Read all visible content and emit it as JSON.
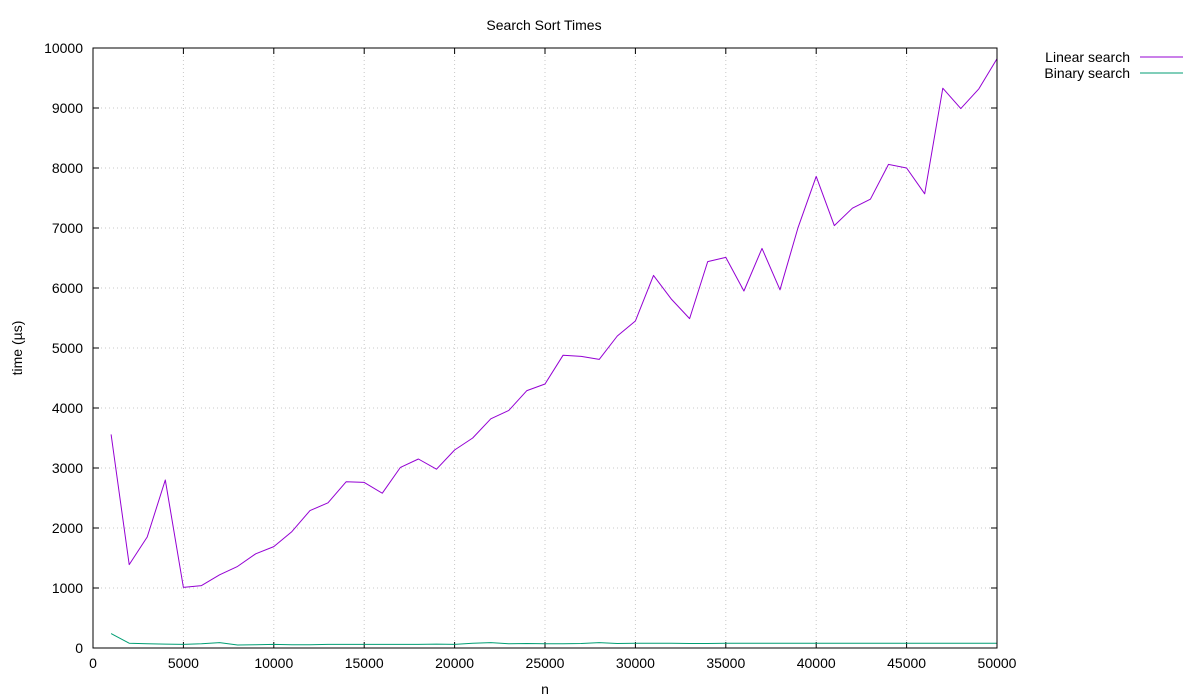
{
  "chart_data": {
    "type": "line",
    "title": "Search  Sort Times",
    "xlabel": "n",
    "ylabel": "time (µs)",
    "xlim": [
      0,
      50000
    ],
    "ylim": [
      0,
      10000
    ],
    "xticks": [
      0,
      5000,
      10000,
      15000,
      20000,
      25000,
      30000,
      35000,
      40000,
      45000,
      50000
    ],
    "yticks": [
      0,
      1000,
      2000,
      3000,
      4000,
      5000,
      6000,
      7000,
      8000,
      9000,
      10000
    ],
    "grid": true,
    "legend_position": "outside-top-right",
    "x": [
      1000,
      2000,
      3000,
      4000,
      5000,
      6000,
      7000,
      8000,
      9000,
      10000,
      11000,
      12000,
      13000,
      14000,
      15000,
      16000,
      17000,
      18000,
      19000,
      20000,
      21000,
      22000,
      23000,
      24000,
      25000,
      26000,
      27000,
      28000,
      29000,
      30000,
      31000,
      32000,
      33000,
      34000,
      35000,
      36000,
      37000,
      38000,
      39000,
      40000,
      41000,
      42000,
      43000,
      44000,
      45000,
      46000,
      47000,
      48000,
      49000,
      50000
    ],
    "series": [
      {
        "name": "Linear search",
        "color": "#9400d3",
        "values": [
          3560,
          1390,
          1850,
          2800,
          1010,
          1040,
          1220,
          1360,
          1570,
          1690,
          1940,
          2290,
          2420,
          2770,
          2760,
          2580,
          3010,
          3150,
          2980,
          3300,
          3500,
          3820,
          3960,
          4290,
          4400,
          4880,
          4860,
          4810,
          5200,
          5450,
          6210,
          5810,
          5490,
          6440,
          6510,
          5950,
          6660,
          5970,
          7010,
          7860,
          7040,
          7330,
          7480,
          8060,
          8000,
          7570,
          9330,
          8990,
          9320,
          9820
        ]
      },
      {
        "name": "Binary search",
        "color": "#009e73",
        "values": [
          240,
          80,
          70,
          65,
          60,
          70,
          90,
          50,
          55,
          60,
          55,
          55,
          60,
          60,
          60,
          60,
          60,
          60,
          65,
          60,
          80,
          90,
          70,
          75,
          70,
          70,
          75,
          90,
          75,
          80,
          80,
          80,
          75,
          75,
          80,
          80,
          80,
          80,
          80,
          80,
          80,
          80,
          80,
          80,
          80,
          80,
          80,
          80,
          80,
          80
        ]
      }
    ]
  }
}
